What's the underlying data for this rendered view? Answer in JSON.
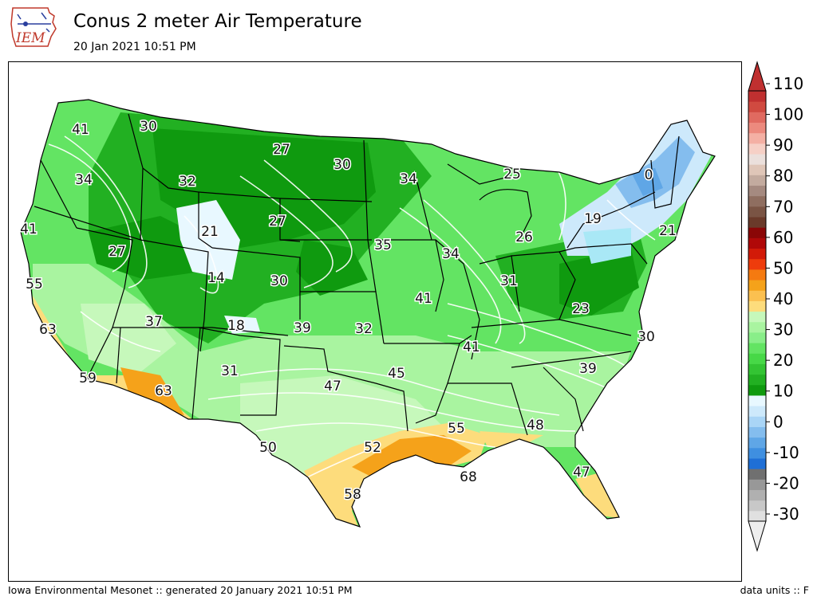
{
  "header": {
    "title": "Conus 2 meter Air Temperature",
    "subtitle": "20 Jan 2021 10:51 PM",
    "logo_text": "IEM"
  },
  "footer": {
    "left": "Iowa Environmental Mesonet :: generated 20 January 2021 10:51 PM",
    "right": "data units :: F"
  },
  "legend": {
    "ticks": [
      "110",
      "100",
      "90",
      "80",
      "70",
      "60",
      "50",
      "40",
      "30",
      "20",
      "10",
      "0",
      "-10",
      "-20",
      "-30"
    ],
    "colors": [
      "#e0e0e0",
      "#c8c8c8",
      "#b0b0b0",
      "#989898",
      "#707070",
      "#1f6fd6",
      "#3f8fe0",
      "#5fa6e6",
      "#84bdee",
      "#a9d5f6",
      "#cde9fb",
      "#e8f8ff",
      "#0f9a0f",
      "#22b022",
      "#33c433",
      "#47d847",
      "#63e463",
      "#89ee89",
      "#a9f4a0",
      "#c6f8bb",
      "#fddc7c",
      "#fbc050",
      "#f5a21a",
      "#f57a10",
      "#ee3c0c",
      "#d21a08",
      "#b00808",
      "#8a0606",
      "#6a3a2a",
      "#7a5444",
      "#8f6e60",
      "#a58a80",
      "#c3ab9f",
      "#dfc6b8",
      "#ebe0dc",
      "#f6d0c6",
      "#f4b0a4",
      "#ec8a7e",
      "#e06a60",
      "#d04a40",
      "#c03030"
    ]
  },
  "chart_data": {
    "type": "map",
    "title": "Conus 2 meter Air Temperature",
    "units": "F",
    "colorbar_range": [
      -30,
      110
    ],
    "station_labels": [
      {
        "value": "41",
        "place": "Washington"
      },
      {
        "value": "30",
        "place": "Northern Idaho"
      },
      {
        "value": "27",
        "place": "Montana"
      },
      {
        "value": "30",
        "place": "North Dakota"
      },
      {
        "value": "34",
        "place": "Minnesota"
      },
      {
        "value": "25",
        "place": "Upper Michigan"
      },
      {
        "value": "0",
        "place": "Northern New York / Vermont"
      },
      {
        "value": "34",
        "place": "Oregon"
      },
      {
        "value": "32",
        "place": "Idaho"
      },
      {
        "value": "41",
        "place": "Northern California coast"
      },
      {
        "value": "21",
        "place": "Northwest Wyoming"
      },
      {
        "value": "27",
        "place": "Wyoming"
      },
      {
        "value": "19",
        "place": "Western New York"
      },
      {
        "value": "21",
        "place": "Massachusetts"
      },
      {
        "value": "27",
        "place": "Nevada"
      },
      {
        "value": "35",
        "place": "Iowa"
      },
      {
        "value": "34",
        "place": "Illinois"
      },
      {
        "value": "26",
        "place": "Michigan"
      },
      {
        "value": "55",
        "place": "Central California coast"
      },
      {
        "value": "14",
        "place": "Utah"
      },
      {
        "value": "30",
        "place": "Colorado"
      },
      {
        "value": "31",
        "place": "Ohio"
      },
      {
        "value": "41",
        "place": "Missouri"
      },
      {
        "value": "23",
        "place": "West Virginia"
      },
      {
        "value": "63",
        "place": "Southern California coast"
      },
      {
        "value": "37",
        "place": "Southern Nevada"
      },
      {
        "value": "18",
        "place": "Southern Utah"
      },
      {
        "value": "39",
        "place": "Western Kansas"
      },
      {
        "value": "32",
        "place": "Kansas"
      },
      {
        "value": "41",
        "place": "Tennessee"
      },
      {
        "value": "30",
        "place": "North Carolina coast"
      },
      {
        "value": "39",
        "place": "South Carolina"
      },
      {
        "value": "59",
        "place": "Southern California desert"
      },
      {
        "value": "63",
        "place": "Arizona"
      },
      {
        "value": "31",
        "place": "New Mexico"
      },
      {
        "value": "47",
        "place": "Texas Panhandle"
      },
      {
        "value": "45",
        "place": "Arkansas"
      },
      {
        "value": "55",
        "place": "Mississippi"
      },
      {
        "value": "48",
        "place": "Georgia"
      },
      {
        "value": "50",
        "place": "West Texas"
      },
      {
        "value": "52",
        "place": "East Texas"
      },
      {
        "value": "68",
        "place": "Louisiana coast"
      },
      {
        "value": "47",
        "place": "Northern Florida"
      },
      {
        "value": "58",
        "place": "South Texas"
      }
    ]
  }
}
